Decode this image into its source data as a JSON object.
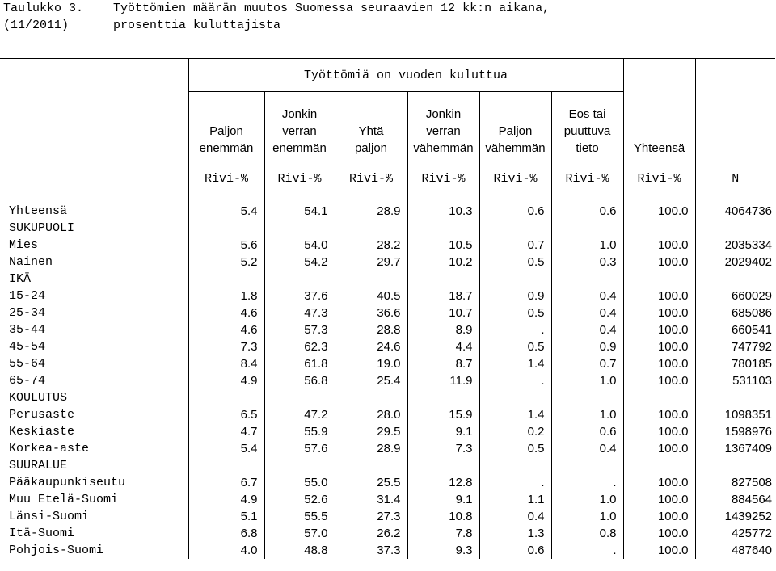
{
  "title": {
    "label_line1": "Taulukko 3.",
    "label_line2": "(11/2011)",
    "text_line1": "Työttömien määrän muutos Suomessa seuraavien 12 kk:n aikana,",
    "text_line2": "prosenttia kuluttajista"
  },
  "header": {
    "group_label": "Työttömiä on vuoden kuluttua",
    "columns": [
      {
        "l1": "",
        "l2": "Paljon",
        "l3": "enemmän"
      },
      {
        "l1": "Jonkin",
        "l2": "verran",
        "l3": "enemmän"
      },
      {
        "l1": "",
        "l2": "Yhtä",
        "l3": "paljon"
      },
      {
        "l1": "Jonkin",
        "l2": "verran",
        "l3": "vähemmän"
      },
      {
        "l1": "",
        "l2": "Paljon",
        "l3": "vähemmän"
      },
      {
        "l1": "Eos tai",
        "l2": "puuttuva",
        "l3": "tieto"
      }
    ],
    "total_label": "Yhteensä",
    "units": [
      "Rivi-%",
      "Rivi-%",
      "Rivi-%",
      "Rivi-%",
      "Rivi-%",
      "Rivi-%",
      "Rivi-%",
      "N"
    ]
  },
  "rows": [
    {
      "label": "Yhteensä",
      "values": [
        "5.4",
        "54.1",
        "28.9",
        "10.3",
        "0.6",
        "0.6",
        "100.0",
        "4064736"
      ]
    },
    {
      "label": "SUKUPUOLI",
      "values": []
    },
    {
      "label": "Mies",
      "values": [
        "5.6",
        "54.0",
        "28.2",
        "10.5",
        "0.7",
        "1.0",
        "100.0",
        "2035334"
      ]
    },
    {
      "label": "Nainen",
      "values": [
        "5.2",
        "54.2",
        "29.7",
        "10.2",
        "0.5",
        "0.3",
        "100.0",
        "2029402"
      ]
    },
    {
      "label": "IKÄ",
      "values": []
    },
    {
      "label": "15-24",
      "values": [
        "1.8",
        "37.6",
        "40.5",
        "18.7",
        "0.9",
        "0.4",
        "100.0",
        "660029"
      ]
    },
    {
      "label": "25-34",
      "values": [
        "4.6",
        "47.3",
        "36.6",
        "10.7",
        "0.5",
        "0.4",
        "100.0",
        "685086"
      ]
    },
    {
      "label": "35-44",
      "values": [
        "4.6",
        "57.3",
        "28.8",
        "8.9",
        ".",
        "0.4",
        "100.0",
        "660541"
      ]
    },
    {
      "label": "45-54",
      "values": [
        "7.3",
        "62.3",
        "24.6",
        "4.4",
        "0.5",
        "0.9",
        "100.0",
        "747792"
      ]
    },
    {
      "label": "55-64",
      "values": [
        "8.4",
        "61.8",
        "19.0",
        "8.7",
        "1.4",
        "0.7",
        "100.0",
        "780185"
      ]
    },
    {
      "label": "65-74",
      "values": [
        "4.9",
        "56.8",
        "25.4",
        "11.9",
        ".",
        "1.0",
        "100.0",
        "531103"
      ]
    },
    {
      "label": "KOULUTUS",
      "values": []
    },
    {
      "label": "Perusaste",
      "values": [
        "6.5",
        "47.2",
        "28.0",
        "15.9",
        "1.4",
        "1.0",
        "100.0",
        "1098351"
      ]
    },
    {
      "label": "Keskiaste",
      "values": [
        "4.7",
        "55.9",
        "29.5",
        "9.1",
        "0.2",
        "0.6",
        "100.0",
        "1598976"
      ]
    },
    {
      "label": "Korkea-aste",
      "values": [
        "5.4",
        "57.6",
        "28.9",
        "7.3",
        "0.5",
        "0.4",
        "100.0",
        "1367409"
      ]
    },
    {
      "label": "SUURALUE",
      "values": []
    },
    {
      "label": "Pääkaupunkiseutu",
      "values": [
        "6.7",
        "55.0",
        "25.5",
        "12.8",
        ".",
        ".",
        "100.0",
        "827508"
      ]
    },
    {
      "label": "Muu Etelä-Suomi",
      "values": [
        "4.9",
        "52.6",
        "31.4",
        "9.1",
        "1.1",
        "1.0",
        "100.0",
        "884564"
      ]
    },
    {
      "label": "Länsi-Suomi",
      "values": [
        "5.1",
        "55.5",
        "27.3",
        "10.8",
        "0.4",
        "1.0",
        "100.0",
        "1439252"
      ]
    },
    {
      "label": "Itä-Suomi",
      "values": [
        "6.8",
        "57.0",
        "26.2",
        "7.8",
        "1.3",
        "0.8",
        "100.0",
        "425772"
      ]
    },
    {
      "label": "Pohjois-Suomi",
      "values": [
        "4.0",
        "48.8",
        "37.3",
        "9.3",
        "0.6",
        ".",
        "100.0",
        "487640"
      ]
    }
  ]
}
